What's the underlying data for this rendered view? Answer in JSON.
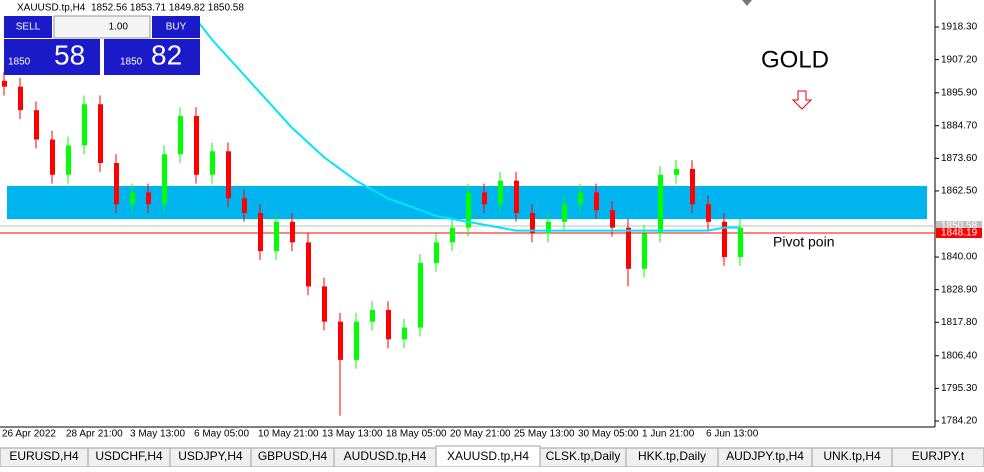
{
  "header": {
    "symbol": "XAUUSD.tp,H4",
    "ohlc": "1852.56 1853.71 1849.82 1850.58"
  },
  "trade_panel": {
    "sell": "SELL",
    "lot": "1.00",
    "buy": "BUY",
    "bid_big": "1850",
    "bid_small": "58",
    "ask_big": "1850",
    "ask_small": "82"
  },
  "chart_data": {
    "type": "candlestick",
    "categories": [
      "26 Apr 2022",
      null,
      null,
      null,
      "28 Apr 21:00",
      null,
      null,
      null,
      "3 May 13:00",
      null,
      null,
      null,
      "6 May 05:00",
      null,
      null,
      null,
      "10 May 21:00",
      null,
      null,
      null,
      "13 May 13:00",
      null,
      null,
      null,
      "18 May 05:00",
      null,
      null,
      null,
      "20 May 21:00",
      null,
      null,
      null,
      "25 May 13:00",
      null,
      null,
      null,
      "30 May 05:00",
      null,
      null,
      null,
      "1 Jun 21:00",
      null,
      null,
      null,
      "6 Jun 13:00",
      null,
      null
    ],
    "open": [
      1900,
      1898,
      1890,
      1880,
      1868,
      1878,
      1892,
      1872,
      1858,
      1862,
      1858,
      1875,
      1888,
      1868,
      1876,
      1860,
      1855,
      1842,
      1852,
      1845,
      1830,
      1818,
      1805,
      1818,
      1822,
      1812,
      1816,
      1838,
      1845,
      1850,
      1862,
      1858,
      1866,
      1855,
      1848,
      1852,
      1858,
      1862,
      1856,
      1850,
      1836,
      1848,
      1868,
      1870,
      1858,
      1852,
      1840
    ],
    "high": [
      1903,
      1901,
      1893,
      1883,
      1881,
      1895,
      1895,
      1875,
      1865,
      1865,
      1878,
      1891,
      1891,
      1879,
      1879,
      1863,
      1858,
      1855,
      1855,
      1848,
      1833,
      1821,
      1821,
      1825,
      1825,
      1819,
      1841,
      1848,
      1853,
      1865,
      1865,
      1869,
      1869,
      1858,
      1855,
      1861,
      1865,
      1865,
      1859,
      1853,
      1851,
      1871,
      1873,
      1873,
      1861,
      1855,
      1853
    ],
    "low": [
      1895,
      1887,
      1877,
      1865,
      1865,
      1875,
      1869,
      1855,
      1855,
      1855,
      1855,
      1872,
      1865,
      1865,
      1857,
      1852,
      1839,
      1839,
      1842,
      1827,
      1815,
      1786,
      1802,
      1815,
      1809,
      1809,
      1813,
      1835,
      1842,
      1847,
      1855,
      1855,
      1852,
      1845,
      1845,
      1849,
      1855,
      1853,
      1847,
      1830,
      1833,
      1845,
      1865,
      1855,
      1849,
      1837,
      1837
    ],
    "close": [
      1898,
      1890,
      1880,
      1868,
      1878,
      1892,
      1872,
      1858,
      1862,
      1858,
      1875,
      1888,
      1868,
      1876,
      1860,
      1855,
      1842,
      1852,
      1845,
      1830,
      1818,
      1805,
      1818,
      1822,
      1812,
      1816,
      1838,
      1845,
      1850,
      1862,
      1858,
      1866,
      1855,
      1848,
      1852,
      1858,
      1862,
      1856,
      1850,
      1836,
      1848,
      1868,
      1870,
      1858,
      1852,
      1840,
      1850
    ],
    "up_color": "#00ff00",
    "down_color": "#ff0000",
    "ma": {
      "color": "#00e5ff",
      "values": [
        null,
        null,
        null,
        null,
        null,
        null,
        null,
        null,
        null,
        null,
        null,
        null,
        1921,
        1914,
        1908,
        1902,
        1896,
        1890,
        1884,
        1879,
        1874,
        1870,
        1866,
        1863,
        1860,
        1858,
        1856,
        1854,
        1853,
        1852,
        1851,
        1850,
        1849,
        1849,
        1849,
        1849,
        1849,
        1849,
        1849,
        1849,
        1849,
        1849,
        1849,
        1849,
        1849,
        1850,
        1850
      ]
    },
    "zone": {
      "color": "#00b4f0",
      "low": 1852.9,
      "high": 1864.2
    },
    "ylim": [
      1778.75,
      1927.49
    ],
    "yticks": [
      {
        "value": 1918.3,
        "label": "1918.30"
      },
      {
        "value": 1907.2,
        "label": "1907.20"
      },
      {
        "value": 1895.9,
        "label": "1895.90"
      },
      {
        "value": 1884.7,
        "label": "1884.70"
      },
      {
        "value": 1873.6,
        "label": "1873.60"
      },
      {
        "value": 1862.5,
        "label": "1862.50"
      },
      {
        "value": 1840,
        "label": "1840.00"
      },
      {
        "value": 1828.9,
        "label": "1828.90"
      },
      {
        "value": 1817.8,
        "label": "1817.80"
      },
      {
        "value": 1806.4,
        "label": "1806.40"
      },
      {
        "value": 1795.3,
        "label": "1795.30"
      },
      {
        "value": 1784.2,
        "label": "1784.20"
      }
    ],
    "price_lines": [
      {
        "value": 1850.58,
        "label": "1850.58",
        "color": "#c0c0c0"
      },
      {
        "value": 1848.19,
        "label": "1848.19",
        "color": "#ff0000"
      }
    ],
    "annotations": {
      "title": "GOLD",
      "pivot": "Pivot poin"
    }
  },
  "tabs": [
    "EURUSD,H4",
    "USDCHF,H4",
    "USDJPY,H4",
    "GBPUSD,H4",
    "AUDUSD.tp,H4",
    "XAUUSD.tp,H4",
    "CLSK.tp,Daily",
    "HKK.tp,Daily",
    "AUDJPY.tp,H4",
    "UNK.tp,H4",
    "EURJPY.t"
  ],
  "active_tab": 5
}
